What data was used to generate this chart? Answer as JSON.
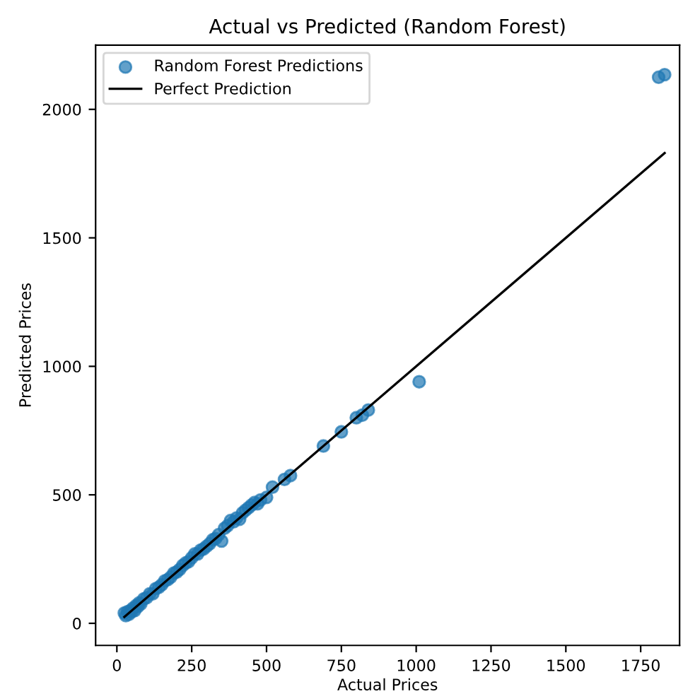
{
  "chart_data": {
    "type": "scatter",
    "title": "Actual vs Predicted (Random Forest)",
    "xlabel": "Actual Prices",
    "ylabel": "Predicted Prices",
    "xlim": [
      -71,
      1880
    ],
    "ylim": [
      -86,
      2250
    ],
    "xticks": [
      0,
      250,
      500,
      750,
      1000,
      1250,
      1500,
      1750
    ],
    "yticks": [
      0,
      500,
      1000,
      1500,
      2000
    ],
    "grid": false,
    "legend": "top left",
    "marker": "circle",
    "series": [
      {
        "name": "Random Forest Predictions",
        "color": "#1f77b4",
        "x": [
          25,
          30,
          35,
          40,
          45,
          50,
          55,
          60,
          65,
          70,
          75,
          80,
          90,
          100,
          110,
          120,
          130,
          140,
          150,
          160,
          170,
          180,
          190,
          200,
          210,
          220,
          230,
          240,
          250,
          260,
          270,
          280,
          290,
          300,
          310,
          320,
          330,
          340,
          350,
          360,
          370,
          380,
          390,
          400,
          410,
          420,
          430,
          440,
          450,
          460,
          470,
          480,
          500,
          520,
          560,
          580,
          690,
          750,
          800,
          820,
          840,
          1010,
          1810,
          1830
        ],
        "values": [
          40,
          30,
          45,
          35,
          50,
          45,
          60,
          50,
          70,
          65,
          80,
          75,
          95,
          100,
          115,
          115,
          135,
          140,
          150,
          165,
          170,
          180,
          195,
          200,
          210,
          225,
          235,
          240,
          255,
          270,
          270,
          285,
          290,
          300,
          310,
          325,
          330,
          345,
          320,
          370,
          380,
          400,
          395,
          410,
          405,
          430,
          440,
          450,
          460,
          470,
          465,
          480,
          490,
          530,
          560,
          575,
          690,
          745,
          800,
          810,
          830,
          940,
          2125,
          2135
        ]
      },
      {
        "name": "Perfect Prediction",
        "type": "line",
        "color": "#000000",
        "line_style": "solid",
        "marker": "none",
        "x": [
          25,
          1830
        ],
        "values": [
          25,
          1830
        ]
      }
    ]
  }
}
